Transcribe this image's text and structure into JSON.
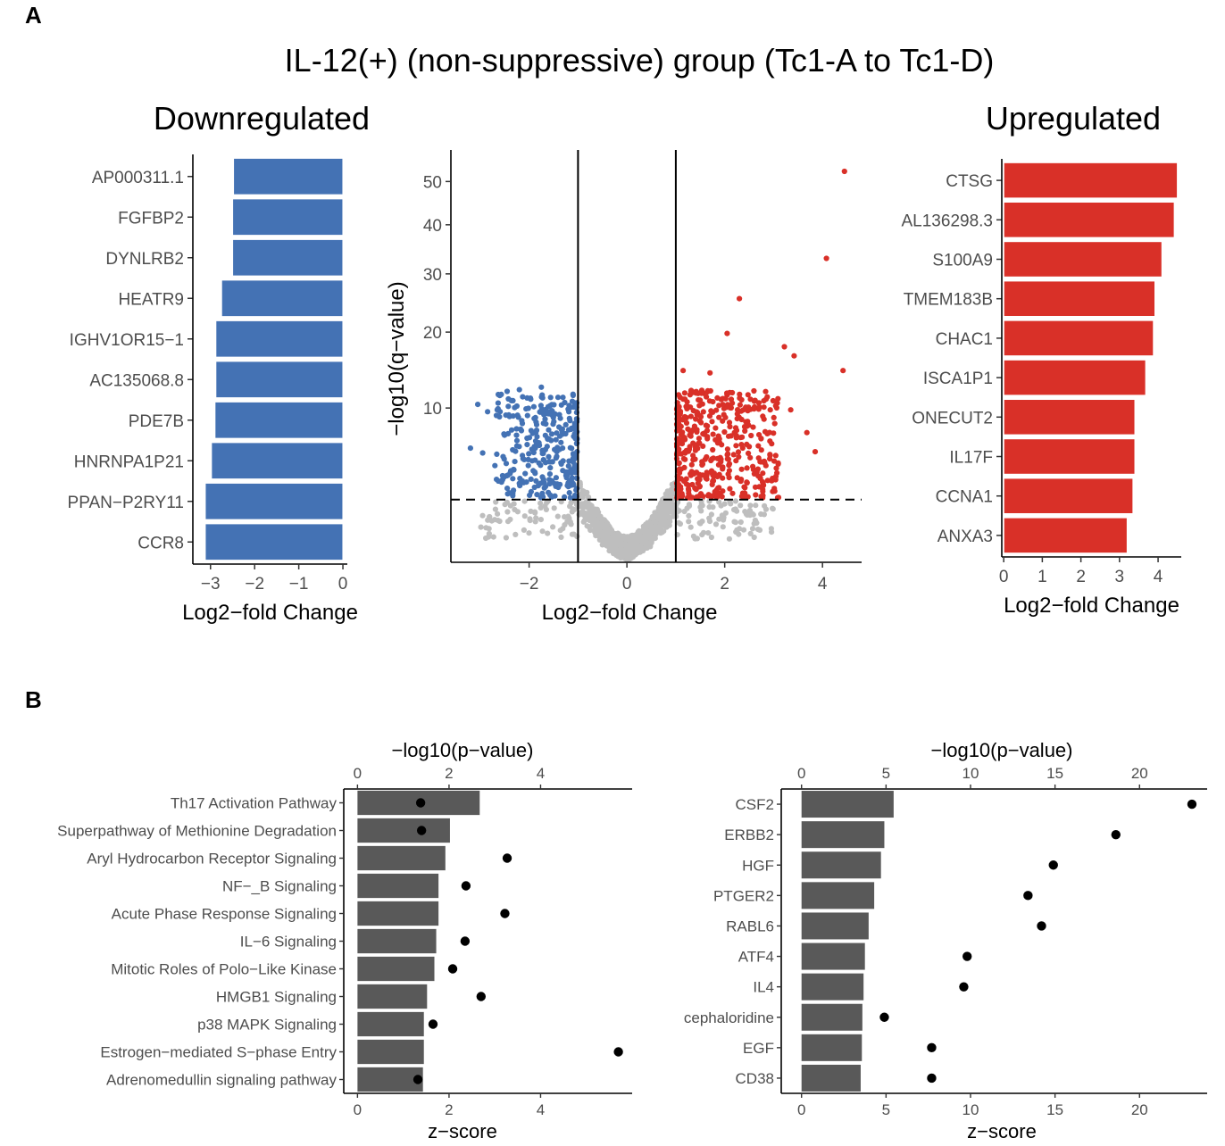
{
  "figure": {
    "panel_a_letter": "A",
    "panel_b_letter": "B",
    "title": "IL-12(+) (non-suppressive) group (Tc1-A to Tc1-D)"
  },
  "colors": {
    "down": "#4472b4",
    "up": "#d93028",
    "neutral": "#bebebe",
    "bar_b": "#595959",
    "dot_b": "#000000"
  },
  "chart_data": [
    {
      "id": "downregulated",
      "type": "bar",
      "orientation": "horizontal",
      "title": "Downregulated",
      "xlabel": "Log2−fold Change",
      "categories": [
        "AP000311.1",
        "FGFBP2",
        "DYNLRB2",
        "HEATR9",
        "IGHV1OR15−1",
        "AC135068.8",
        "PDE7B",
        "HNRNPA1P21",
        "PPAN−P2RY11",
        "CCR8"
      ],
      "values": [
        -2.48,
        -2.5,
        -2.5,
        -2.75,
        -2.88,
        -2.88,
        -2.9,
        -2.98,
        -3.12,
        -3.12
      ],
      "xlim": [
        -3.4,
        0.1
      ],
      "xticks": [
        -3,
        -2,
        -1,
        0
      ],
      "xtick_labels": [
        "−3",
        "−2",
        "−1",
        "0"
      ]
    },
    {
      "id": "volcano",
      "type": "scatter",
      "title": "",
      "xlabel": "Log2−fold Change",
      "ylabel": "−log10(q−value)",
      "xlim": [
        -3.6,
        4.8
      ],
      "ylim": [
        0.25,
        58
      ],
      "yscale": "sqrt",
      "xticks": [
        -2,
        0,
        2,
        4
      ],
      "xtick_labels": [
        "−2",
        "0",
        "2",
        "4"
      ],
      "yticks": [
        10,
        20,
        30,
        40,
        50
      ],
      "ytick_labels": [
        "10",
        "20",
        "30",
        "40",
        "50"
      ],
      "vlines": [
        -1,
        1
      ],
      "hline": 2.5,
      "labeled_points_up": [
        [
          4.45,
          52.5
        ],
        [
          4.08,
          33
        ],
        [
          2.3,
          25.5
        ],
        [
          2.05,
          19.8
        ],
        [
          4.42,
          14.5
        ],
        [
          3.22,
          17.8
        ],
        [
          3.42,
          16.5
        ],
        [
          3.35,
          9.8
        ],
        [
          3.68,
          7.5
        ],
        [
          3.85,
          5.8
        ],
        [
          1.7,
          14.2
        ],
        [
          1.15,
          14.5
        ],
        [
          2.8,
          10.8
        ],
        [
          2.6,
          9.9
        ]
      ],
      "labeled_points_down": [
        [
          -3.05,
          10.4
        ],
        [
          -2.85,
          9.6
        ],
        [
          -2.6,
          11.4
        ],
        [
          -2.45,
          11.9
        ],
        [
          -2.2,
          12.1
        ],
        [
          -1.75,
          12.4
        ],
        [
          -3.2,
          6.1
        ],
        [
          -2.95,
          5.7
        ],
        [
          -2.7,
          4.7
        ]
      ]
    },
    {
      "id": "upregulated",
      "type": "bar",
      "orientation": "horizontal",
      "title": "Upregulated",
      "xlabel": "Log2−fold Change",
      "categories": [
        "CTSG",
        "AL136298.3",
        "S100A9",
        "TMEM183B",
        "CHAC1",
        "ISCA1P1",
        "ONECUT2",
        "IL17F",
        "CCNA1",
        "ANXA3"
      ],
      "values": [
        4.5,
        4.42,
        4.1,
        3.92,
        3.88,
        3.68,
        3.4,
        3.4,
        3.35,
        3.2
      ],
      "xlim": [
        -0.05,
        4.6
      ],
      "xticks": [
        0,
        1,
        2,
        3,
        4
      ],
      "xtick_labels": [
        "0",
        "1",
        "2",
        "3",
        "4"
      ]
    },
    {
      "id": "pathways",
      "type": "bar",
      "orientation": "horizontal",
      "title": "",
      "top_axis_label": "−log10(p−value)",
      "xlabel": "z−score",
      "categories": [
        "Th17 Activation Pathway",
        "Superpathway of Methionine Degradation",
        "Aryl Hydrocarbon Receptor Signaling",
        "NF−_B Signaling",
        "Acute Phase Response Signaling",
        "IL−6 Signaling",
        "Mitotic Roles of Polo−Like Kinase",
        "HMGB1 Signaling",
        "p38 MAPK Signaling",
        "Estrogen−mediated S−phase Entry",
        "Adrenomedullin signaling pathway"
      ],
      "series": [
        {
          "name": "−log10(p−value)",
          "kind": "bar",
          "values": [
            2.67,
            2.02,
            1.92,
            1.77,
            1.77,
            1.72,
            1.68,
            1.52,
            1.45,
            1.45,
            1.43
          ]
        },
        {
          "name": "z−score",
          "kind": "point",
          "values": [
            1.38,
            1.4,
            3.27,
            2.37,
            3.22,
            2.35,
            2.08,
            2.7,
            1.65,
            5.7,
            1.32
          ]
        }
      ],
      "xlim": [
        -0.3,
        6.0
      ],
      "xticks_top": [
        0,
        2,
        4
      ],
      "xticks_bottom": [
        0,
        2,
        4
      ]
    },
    {
      "id": "upstream",
      "type": "bar",
      "orientation": "horizontal",
      "title": "",
      "top_axis_label": "−log10(p−value)",
      "xlabel": "z−score",
      "categories": [
        "CSF2",
        "ERBB2",
        "HGF",
        "PTGER2",
        "RABL6",
        "ATF4",
        "IL4",
        "cephaloridine",
        "EGF",
        "CD38"
      ],
      "series": [
        {
          "name": "−log10(p−value)",
          "kind": "bar",
          "values": [
            5.45,
            4.9,
            4.7,
            4.3,
            3.97,
            3.75,
            3.67,
            3.6,
            3.57,
            3.5
          ]
        },
        {
          "name": "z−score",
          "kind": "point",
          "values": [
            23.1,
            18.6,
            14.9,
            13.4,
            14.2,
            9.8,
            9.6,
            4.9,
            7.7,
            7.7
          ]
        }
      ],
      "xlim": [
        -1.2,
        24.0
      ],
      "xticks_top": [
        0,
        5,
        10,
        15,
        20
      ],
      "xticks_bottom": [
        0,
        5,
        10,
        15,
        20
      ]
    }
  ]
}
